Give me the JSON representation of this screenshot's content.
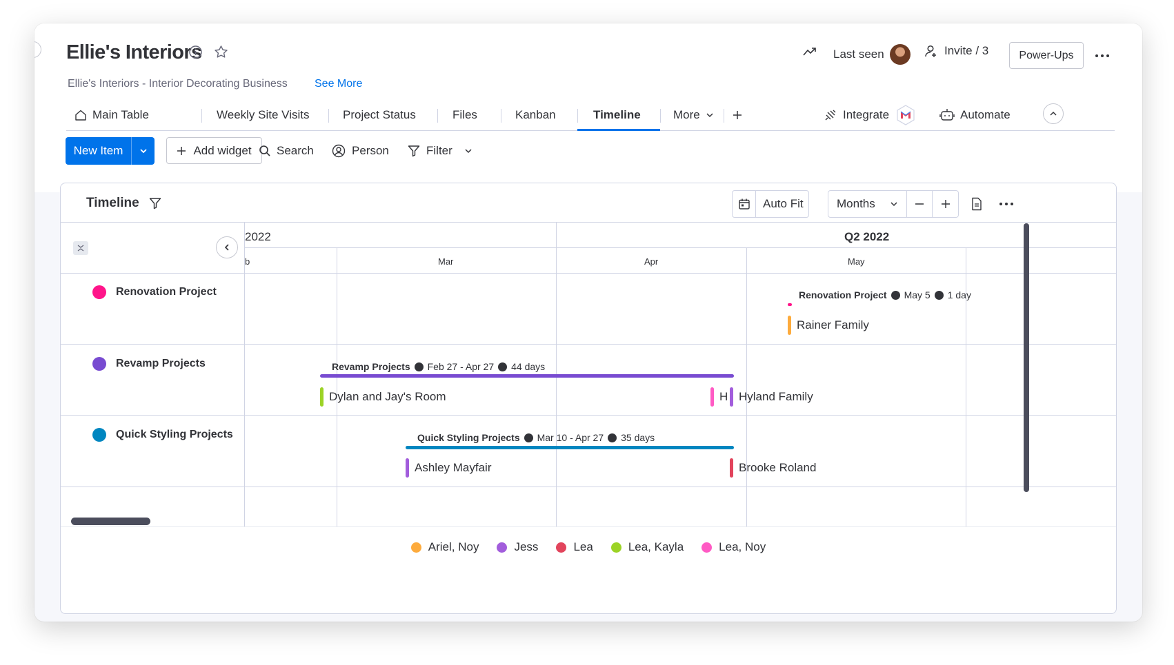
{
  "header": {
    "title": "Ellie's Interiors",
    "subtitle": "Ellie's Interiors - Interior Decorating Business",
    "see_more": "See More",
    "last_seen": "Last seen",
    "invite": "Invite / 3",
    "power_ups": "Power-Ups"
  },
  "tabs": [
    {
      "label": "Main Table"
    },
    {
      "label": "Weekly Site Visits"
    },
    {
      "label": "Project Status"
    },
    {
      "label": "Files"
    },
    {
      "label": "Kanban"
    },
    {
      "label": "Timeline"
    },
    {
      "label": "More"
    }
  ],
  "integrations": {
    "integrate": "Integrate",
    "automate": "Automate"
  },
  "toolbar": {
    "new_item": "New Item",
    "add_widget": "Add widget",
    "search": "Search",
    "person": "Person",
    "filter": "Filter"
  },
  "timeline": {
    "title": "Timeline",
    "auto_fit": "Auto Fit",
    "scale": "Months",
    "quarters": [
      "2022",
      "Q2 2022"
    ],
    "months": [
      "b",
      "Mar",
      "Apr",
      "May"
    ],
    "groups": [
      {
        "name": "Renovation Project",
        "color": "#ff158a",
        "bar_title": "Renovation Project",
        "bar_dates": "May 5",
        "bar_duration": "1 day",
        "items": [
          {
            "name": "Rainer Family",
            "color": "#fdab3d"
          }
        ]
      },
      {
        "name": "Revamp Projects",
        "color": "#784bd1",
        "bar_title": "Revamp Projects",
        "bar_dates": "Feb 27 - Apr 27",
        "bar_duration": "44 days",
        "items": [
          {
            "name": "Dylan and Jay's Room",
            "color": "#9cd326"
          },
          {
            "name": "H",
            "color": "#ff5ac4"
          },
          {
            "name": "Hyland Family",
            "color": "#a25ddc"
          }
        ]
      },
      {
        "name": "Quick Styling Projects",
        "color": "#0086c0",
        "bar_title": "Quick Styling Projects",
        "bar_dates": "Mar 10 - Apr 27",
        "bar_duration": "35 days",
        "items": [
          {
            "name": "Ashley Mayfair",
            "color": "#a25ddc"
          },
          {
            "name": "Brooke Roland",
            "color": "#e2445c"
          }
        ]
      }
    ],
    "legend": [
      {
        "label": "Ariel, Noy",
        "color": "#fdab3d"
      },
      {
        "label": "Jess",
        "color": "#a25ddc"
      },
      {
        "label": "Lea",
        "color": "#e2445c"
      },
      {
        "label": "Lea, Kayla",
        "color": "#9cd326"
      },
      {
        "label": "Lea, Noy",
        "color": "#ff5ac4"
      }
    ]
  }
}
